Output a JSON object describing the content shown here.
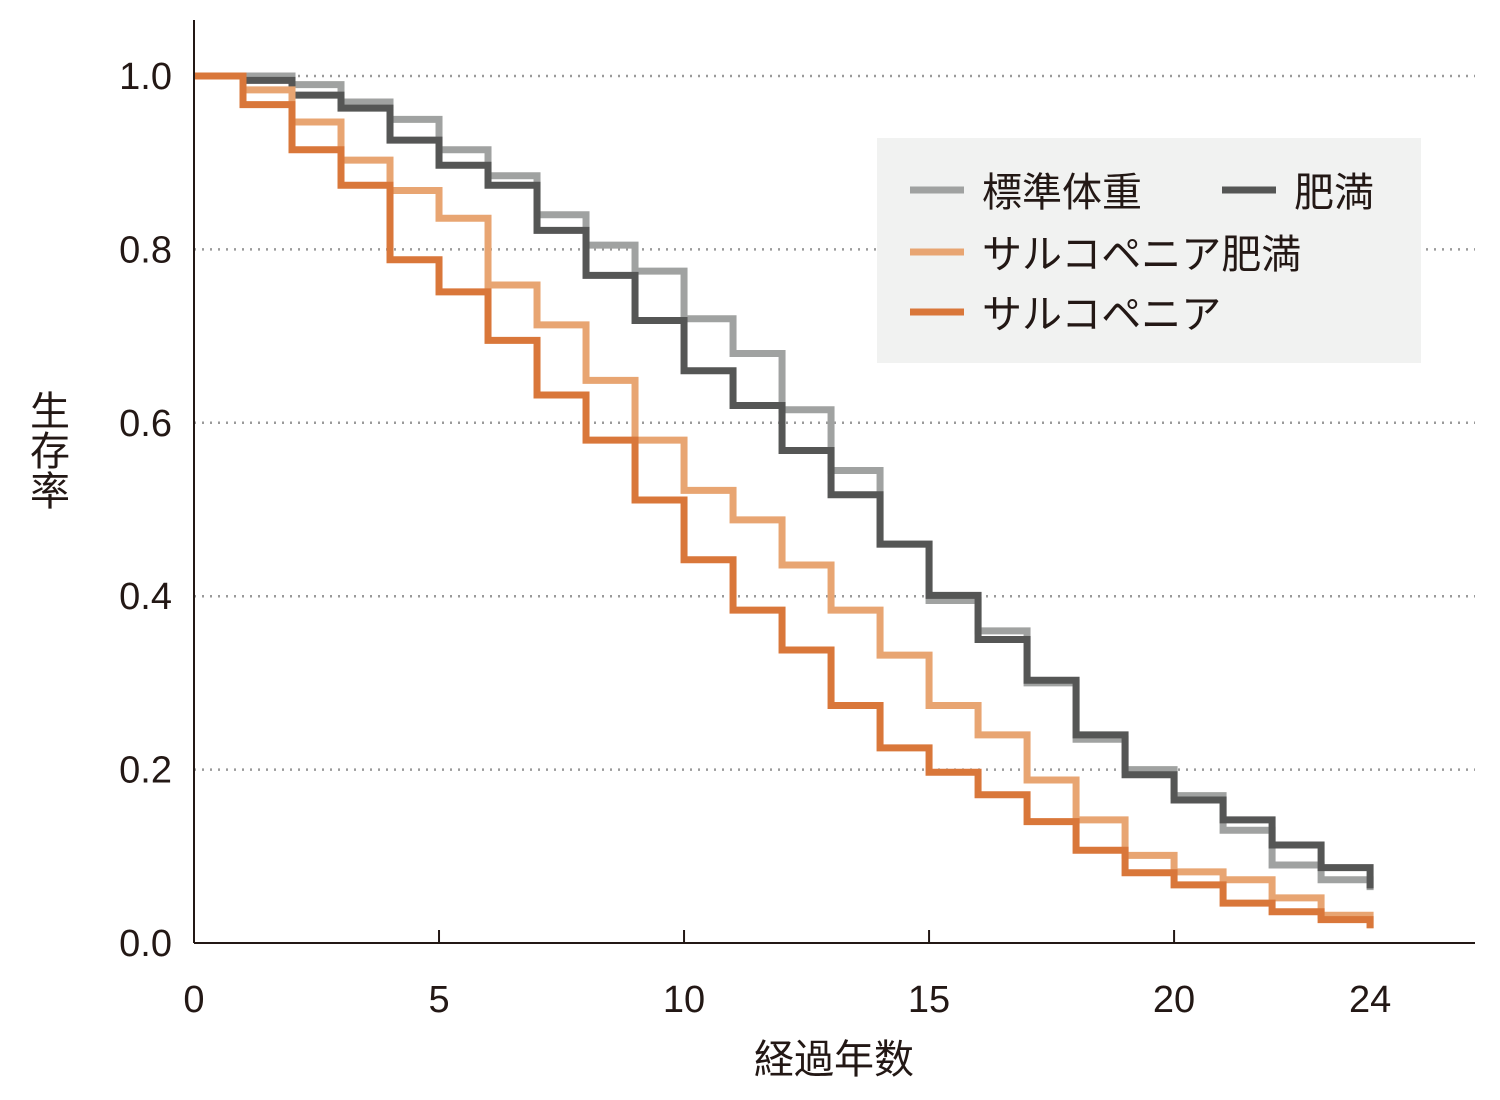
{
  "chart_data": {
    "type": "line",
    "step": true,
    "xlabel": "経過年数",
    "ylabel": "生存率",
    "xlim": [
      0,
      26.1
    ],
    "ylim": [
      0,
      1.0
    ],
    "xticks": [
      0,
      5,
      10,
      15,
      20,
      24
    ],
    "xtick_labels": [
      "0",
      "5",
      "10",
      "15",
      "20",
      "24"
    ],
    "yticks": [
      0,
      0.2,
      0.4,
      0.6,
      0.8,
      1.0
    ],
    "ytick_labels": [
      "0.0",
      "0.2",
      "0.4",
      "0.6",
      "0.8",
      "1.0"
    ],
    "grid": "horizontal dotted",
    "legend_position": "top-right",
    "x": [
      0,
      1,
      2,
      3,
      4,
      5,
      6,
      7,
      8,
      9,
      10,
      11,
      12,
      13,
      14,
      15,
      16,
      17,
      18,
      19,
      20,
      21,
      22,
      23,
      24
    ],
    "series": [
      {
        "name": "標準体重",
        "color": "#a0a2a1",
        "values": [
          1.0,
          1.0,
          0.99,
          0.97,
          0.95,
          0.915,
          0.885,
          0.84,
          0.805,
          0.775,
          0.72,
          0.68,
          0.615,
          0.545,
          0.46,
          0.395,
          0.36,
          0.3,
          0.235,
          0.2,
          0.17,
          0.13,
          0.09,
          0.073,
          0.061
        ]
      },
      {
        "name": "肥満",
        "color": "#555655",
        "values": [
          1.0,
          0.995,
          0.978,
          0.963,
          0.926,
          0.897,
          0.874,
          0.822,
          0.77,
          0.718,
          0.66,
          0.62,
          0.568,
          0.517,
          0.46,
          0.401,
          0.35,
          0.303,
          0.24,
          0.194,
          0.165,
          0.142,
          0.113,
          0.087,
          0.063
        ]
      },
      {
        "name": "サルコペニア肥満",
        "color": "#e8a572",
        "values": [
          1.0,
          0.984,
          0.947,
          0.903,
          0.868,
          0.836,
          0.759,
          0.713,
          0.649,
          0.58,
          0.522,
          0.488,
          0.436,
          0.384,
          0.332,
          0.274,
          0.24,
          0.188,
          0.142,
          0.101,
          0.082,
          0.073,
          0.052,
          0.032,
          0.017
        ]
      },
      {
        "name": "サルコペニア",
        "color": "#d9773a",
        "values": [
          1.0,
          0.967,
          0.915,
          0.874,
          0.788,
          0.751,
          0.695,
          0.632,
          0.58,
          0.511,
          0.442,
          0.384,
          0.338,
          0.274,
          0.225,
          0.197,
          0.171,
          0.14,
          0.107,
          0.081,
          0.067,
          0.046,
          0.036,
          0.027,
          0.017
        ]
      }
    ]
  },
  "legend_bg": "#f1f2f1"
}
